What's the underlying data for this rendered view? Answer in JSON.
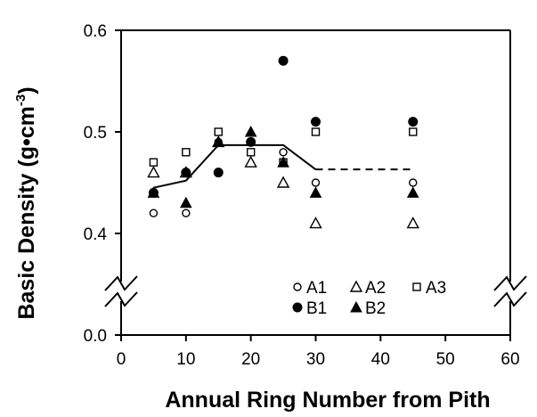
{
  "chart_data": {
    "type": "scatter",
    "title": "",
    "xlabel": "Annual Ring Number from Pith",
    "ylabel": "Basic Density (g•cm",
    "ylabel_sup": "-3",
    "ylabel_close": ")",
    "xlim": [
      0,
      60
    ],
    "x_ticks": [
      0,
      10,
      20,
      30,
      40,
      50,
      60
    ],
    "x_tick_labels": [
      "0",
      "10",
      "20",
      "30",
      "40",
      "50",
      "60"
    ],
    "y_ticks": [
      0.0,
      0.4,
      0.5,
      0.6
    ],
    "y_tick_labels": [
      "0.0",
      "0.4",
      "0.5",
      "0.6"
    ],
    "y_axis_break": true,
    "grid": false,
    "legend_position": "bottom-right inside plot",
    "series": [
      {
        "name": "A1",
        "marker": "open-circle",
        "x": [
          5,
          10,
          15,
          20,
          25,
          30,
          45
        ],
        "y": [
          0.42,
          0.42,
          0.49,
          0.49,
          0.48,
          0.45,
          0.45
        ]
      },
      {
        "name": "A2",
        "marker": "open-triangle",
        "x": [
          5,
          10,
          15,
          20,
          25,
          30,
          45
        ],
        "y": [
          0.46,
          0.46,
          0.49,
          0.47,
          0.45,
          0.41,
          0.41
        ]
      },
      {
        "name": "A3",
        "marker": "open-square",
        "x": [
          5,
          10,
          15,
          20,
          25,
          30,
          45
        ],
        "y": [
          0.47,
          0.48,
          0.5,
          0.48,
          0.47,
          0.5,
          0.5
        ]
      },
      {
        "name": "B1",
        "marker": "filled-circle",
        "x": [
          5,
          10,
          15,
          20,
          25,
          30,
          45
        ],
        "y": [
          0.44,
          0.46,
          0.46,
          0.49,
          0.57,
          0.51,
          0.51
        ]
      },
      {
        "name": "B2",
        "marker": "filled-triangle",
        "x": [
          5,
          10,
          15,
          20,
          25,
          30,
          45
        ],
        "y": [
          0.44,
          0.43,
          0.49,
          0.5,
          0.47,
          0.44,
          0.44
        ]
      }
    ],
    "mean_line": {
      "solid": {
        "x": [
          5,
          10,
          15,
          20,
          25,
          30
        ],
        "y": [
          0.445,
          0.452,
          0.487,
          0.487,
          0.487,
          0.463
        ]
      },
      "dashed": {
        "x": [
          30,
          45
        ],
        "y": [
          0.463,
          0.463
        ]
      }
    },
    "colors": {
      "markers": "#000000",
      "axes": "#000000",
      "background": "#ffffff"
    }
  }
}
